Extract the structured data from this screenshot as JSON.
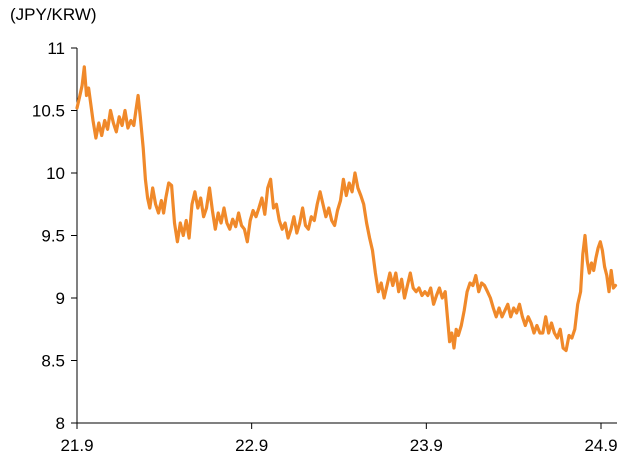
{
  "chart_data": {
    "type": "line",
    "unit_label": "(JPY/KRW)",
    "xlabel": "",
    "ylabel": "",
    "xlim": [
      0,
      37.1
    ],
    "ylim": [
      8,
      11
    ],
    "x_ticks": [
      {
        "label": "21.9",
        "x": 0
      },
      {
        "label": "22.9",
        "x": 12
      },
      {
        "label": "23.9",
        "x": 24
      },
      {
        "label": "24.9",
        "x": 36
      }
    ],
    "y_ticks": [
      "8",
      "8.5",
      "9",
      "9.5",
      "10",
      "10.5",
      "11"
    ],
    "grid": false,
    "legend": "none",
    "series": [
      {
        "color": "#f0892a",
        "points": [
          [
            0.0,
            10.52
          ],
          [
            0.2,
            10.62
          ],
          [
            0.35,
            10.7
          ],
          [
            0.5,
            10.85
          ],
          [
            0.65,
            10.62
          ],
          [
            0.8,
            10.68
          ],
          [
            0.95,
            10.55
          ],
          [
            1.1,
            10.42
          ],
          [
            1.3,
            10.28
          ],
          [
            1.5,
            10.4
          ],
          [
            1.7,
            10.3
          ],
          [
            1.9,
            10.42
          ],
          [
            2.1,
            10.35
          ],
          [
            2.3,
            10.5
          ],
          [
            2.5,
            10.4
          ],
          [
            2.7,
            10.33
          ],
          [
            2.9,
            10.45
          ],
          [
            3.1,
            10.38
          ],
          [
            3.3,
            10.5
          ],
          [
            3.5,
            10.36
          ],
          [
            3.7,
            10.42
          ],
          [
            3.9,
            10.38
          ],
          [
            4.05,
            10.5
          ],
          [
            4.2,
            10.62
          ],
          [
            4.35,
            10.45
          ],
          [
            4.55,
            10.2
          ],
          [
            4.7,
            9.95
          ],
          [
            4.85,
            9.8
          ],
          [
            5.0,
            9.72
          ],
          [
            5.2,
            9.88
          ],
          [
            5.4,
            9.75
          ],
          [
            5.6,
            9.68
          ],
          [
            5.8,
            9.78
          ],
          [
            5.95,
            9.68
          ],
          [
            6.1,
            9.8
          ],
          [
            6.3,
            9.92
          ],
          [
            6.5,
            9.9
          ],
          [
            6.7,
            9.6
          ],
          [
            6.9,
            9.45
          ],
          [
            7.1,
            9.6
          ],
          [
            7.3,
            9.5
          ],
          [
            7.5,
            9.62
          ],
          [
            7.7,
            9.48
          ],
          [
            7.9,
            9.75
          ],
          [
            8.1,
            9.85
          ],
          [
            8.3,
            9.72
          ],
          [
            8.5,
            9.8
          ],
          [
            8.7,
            9.65
          ],
          [
            8.9,
            9.72
          ],
          [
            9.1,
            9.88
          ],
          [
            9.3,
            9.7
          ],
          [
            9.5,
            9.55
          ],
          [
            9.7,
            9.68
          ],
          [
            9.9,
            9.6
          ],
          [
            10.1,
            9.72
          ],
          [
            10.3,
            9.6
          ],
          [
            10.5,
            9.55
          ],
          [
            10.7,
            9.63
          ],
          [
            10.9,
            9.57
          ],
          [
            11.1,
            9.68
          ],
          [
            11.3,
            9.58
          ],
          [
            11.5,
            9.55
          ],
          [
            11.7,
            9.45
          ],
          [
            11.9,
            9.62
          ],
          [
            12.1,
            9.7
          ],
          [
            12.3,
            9.65
          ],
          [
            12.5,
            9.72
          ],
          [
            12.7,
            9.8
          ],
          [
            12.9,
            9.67
          ],
          [
            13.1,
            9.88
          ],
          [
            13.3,
            9.95
          ],
          [
            13.5,
            9.72
          ],
          [
            13.7,
            9.75
          ],
          [
            13.9,
            9.62
          ],
          [
            14.1,
            9.55
          ],
          [
            14.3,
            9.6
          ],
          [
            14.5,
            9.48
          ],
          [
            14.7,
            9.55
          ],
          [
            14.9,
            9.65
          ],
          [
            15.1,
            9.52
          ],
          [
            15.3,
            9.6
          ],
          [
            15.5,
            9.72
          ],
          [
            15.7,
            9.58
          ],
          [
            15.9,
            9.55
          ],
          [
            16.1,
            9.65
          ],
          [
            16.3,
            9.62
          ],
          [
            16.5,
            9.75
          ],
          [
            16.7,
            9.85
          ],
          [
            16.9,
            9.75
          ],
          [
            17.1,
            9.65
          ],
          [
            17.3,
            9.72
          ],
          [
            17.5,
            9.62
          ],
          [
            17.7,
            9.58
          ],
          [
            17.9,
            9.7
          ],
          [
            18.1,
            9.78
          ],
          [
            18.3,
            9.95
          ],
          [
            18.5,
            9.82
          ],
          [
            18.7,
            9.92
          ],
          [
            18.9,
            9.85
          ],
          [
            19.1,
            10.0
          ],
          [
            19.3,
            9.88
          ],
          [
            19.5,
            9.82
          ],
          [
            19.7,
            9.75
          ],
          [
            19.9,
            9.6
          ],
          [
            20.1,
            9.48
          ],
          [
            20.3,
            9.38
          ],
          [
            20.5,
            9.2
          ],
          [
            20.7,
            9.05
          ],
          [
            20.9,
            9.12
          ],
          [
            21.1,
            9.0
          ],
          [
            21.3,
            9.1
          ],
          [
            21.5,
            9.2
          ],
          [
            21.7,
            9.1
          ],
          [
            21.9,
            9.2
          ],
          [
            22.1,
            9.05
          ],
          [
            22.3,
            9.15
          ],
          [
            22.5,
            9.0
          ],
          [
            22.7,
            9.1
          ],
          [
            22.9,
            9.2
          ],
          [
            23.1,
            9.08
          ],
          [
            23.3,
            9.05
          ],
          [
            23.5,
            9.08
          ],
          [
            23.7,
            9.02
          ],
          [
            23.9,
            9.05
          ],
          [
            24.1,
            9.02
          ],
          [
            24.3,
            9.08
          ],
          [
            24.5,
            8.95
          ],
          [
            24.7,
            9.02
          ],
          [
            24.9,
            9.08
          ],
          [
            25.1,
            9.0
          ],
          [
            25.3,
            9.05
          ],
          [
            25.45,
            8.85
          ],
          [
            25.6,
            8.65
          ],
          [
            25.75,
            8.72
          ],
          [
            25.9,
            8.6
          ],
          [
            26.05,
            8.75
          ],
          [
            26.2,
            8.7
          ],
          [
            26.4,
            8.78
          ],
          [
            26.6,
            8.9
          ],
          [
            26.8,
            9.05
          ],
          [
            27.0,
            9.12
          ],
          [
            27.2,
            9.1
          ],
          [
            27.4,
            9.18
          ],
          [
            27.6,
            9.05
          ],
          [
            27.8,
            9.12
          ],
          [
            28.0,
            9.1
          ],
          [
            28.2,
            9.05
          ],
          [
            28.4,
            9.0
          ],
          [
            28.6,
            8.92
          ],
          [
            28.8,
            8.85
          ],
          [
            29.0,
            8.92
          ],
          [
            29.2,
            8.85
          ],
          [
            29.4,
            8.9
          ],
          [
            29.6,
            8.95
          ],
          [
            29.8,
            8.85
          ],
          [
            30.0,
            8.92
          ],
          [
            30.2,
            8.88
          ],
          [
            30.4,
            8.95
          ],
          [
            30.6,
            8.85
          ],
          [
            30.8,
            8.78
          ],
          [
            31.0,
            8.85
          ],
          [
            31.2,
            8.8
          ],
          [
            31.4,
            8.72
          ],
          [
            31.6,
            8.78
          ],
          [
            31.8,
            8.72
          ],
          [
            32.0,
            8.72
          ],
          [
            32.2,
            8.85
          ],
          [
            32.4,
            8.72
          ],
          [
            32.6,
            8.8
          ],
          [
            32.8,
            8.72
          ],
          [
            33.0,
            8.68
          ],
          [
            33.2,
            8.75
          ],
          [
            33.4,
            8.6
          ],
          [
            33.6,
            8.58
          ],
          [
            33.8,
            8.7
          ],
          [
            34.0,
            8.68
          ],
          [
            34.2,
            8.75
          ],
          [
            34.4,
            8.95
          ],
          [
            34.6,
            9.05
          ],
          [
            34.75,
            9.35
          ],
          [
            34.9,
            9.5
          ],
          [
            35.05,
            9.3
          ],
          [
            35.2,
            9.2
          ],
          [
            35.35,
            9.28
          ],
          [
            35.5,
            9.22
          ],
          [
            35.65,
            9.32
          ],
          [
            35.8,
            9.4
          ],
          [
            35.95,
            9.45
          ],
          [
            36.1,
            9.38
          ],
          [
            36.25,
            9.25
          ],
          [
            36.4,
            9.18
          ],
          [
            36.55,
            9.05
          ],
          [
            36.7,
            9.22
          ],
          [
            36.85,
            9.08
          ],
          [
            37.0,
            9.1
          ]
        ]
      }
    ]
  }
}
